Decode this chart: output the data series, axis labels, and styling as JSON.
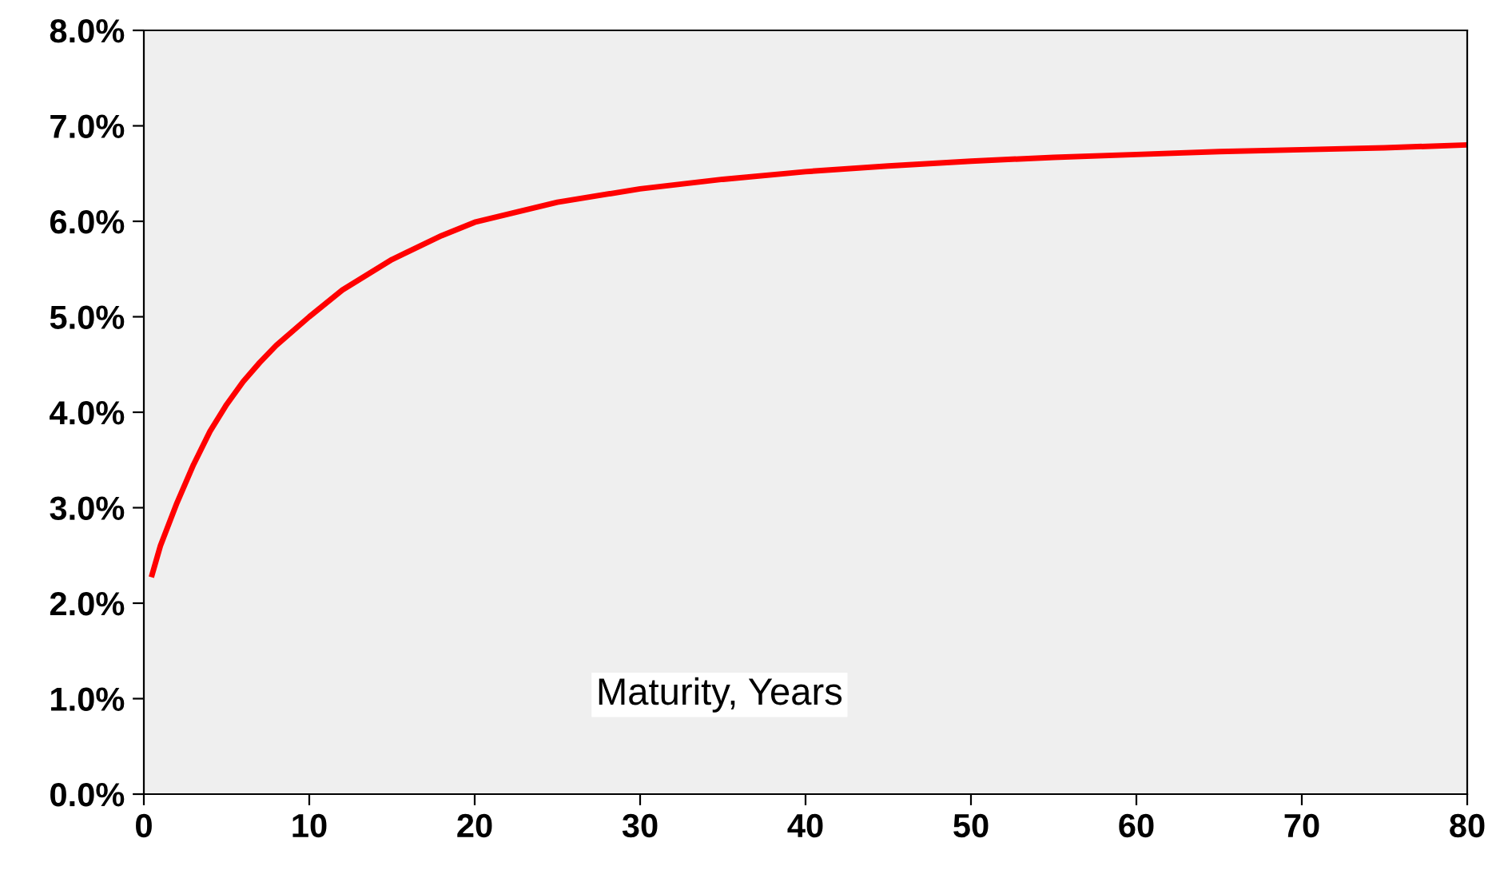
{
  "chart_data": {
    "type": "line",
    "xlabel": "Maturity, Years",
    "x": [
      0.5,
      1,
      2,
      3,
      4,
      5,
      6,
      7,
      8,
      10,
      12,
      15,
      18,
      20,
      25,
      30,
      35,
      40,
      45,
      50,
      55,
      60,
      65,
      70,
      75,
      80
    ],
    "series": [
      {
        "color": "#ff0000",
        "values": [
          2.3,
          2.6,
          3.05,
          3.45,
          3.8,
          4.08,
          4.32,
          4.52,
          4.7,
          5.0,
          5.28,
          5.6,
          5.85,
          5.99,
          6.2,
          6.34,
          6.44,
          6.52,
          6.58,
          6.63,
          6.67,
          6.7,
          6.73,
          6.75,
          6.77,
          6.8
        ]
      }
    ],
    "xlim": [
      0,
      80
    ],
    "xticks": [
      0,
      10,
      20,
      30,
      40,
      50,
      60,
      70,
      80
    ],
    "ylim": [
      0,
      8
    ],
    "yticks": [
      {
        "value": 0,
        "label": "0.0%"
      },
      {
        "value": 1,
        "label": "1.0%"
      },
      {
        "value": 2,
        "label": "2.0%"
      },
      {
        "value": 3,
        "label": "3.0%"
      },
      {
        "value": 4,
        "label": "4.0%"
      },
      {
        "value": 5,
        "label": "5.0%"
      },
      {
        "value": 6,
        "label": "6.0%"
      },
      {
        "value": 7,
        "label": "7.0%"
      },
      {
        "value": 8,
        "label": "8.0%"
      }
    ],
    "grid": false,
    "marker": "none",
    "line_style": "solid"
  }
}
